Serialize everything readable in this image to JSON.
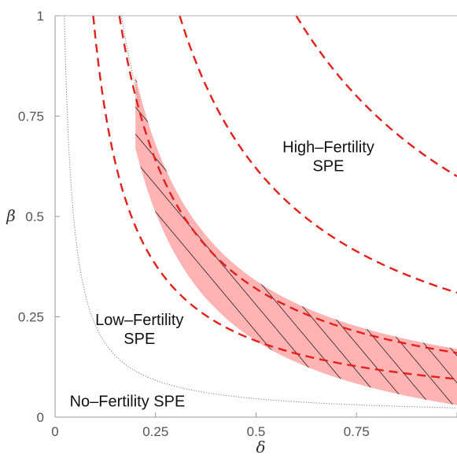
{
  "chart_data": {
    "type": "line",
    "xlabel": "δ",
    "ylabel": "β",
    "xlim": [
      0,
      1
    ],
    "ylim": [
      0,
      1
    ],
    "x_ticks": [
      "0",
      "0.25",
      "0.5",
      "0.75",
      "1"
    ],
    "y_ticks": [
      "0",
      "0.25",
      "0.5",
      "0.75",
      "1"
    ],
    "grid": false,
    "annotations": [
      {
        "text_lines": [
          "High–Fertility",
          "SPE"
        ],
        "x": 0.68,
        "y": 0.65
      },
      {
        "text_lines": [
          "Low–Fertility",
          "SPE"
        ],
        "x": 0.21,
        "y": 0.22
      },
      {
        "text_lines": [
          "No–Fertility SPE"
        ],
        "x": 0.18,
        "y": 0.04
      }
    ],
    "colors": {
      "red_dashed": "#e3201b",
      "gray_dotted": "#8c8c8c",
      "band_fill": "#ffb3b3",
      "hatch": "#2a1a1a"
    },
    "series": [
      {
        "style": "gray-dotted",
        "form": "k/x",
        "k": 0.023,
        "x_range": [
          0.023,
          1
        ]
      },
      {
        "style": "gray-dotted",
        "form": "k/x",
        "k": 0.165,
        "x_range": [
          0.165,
          0.21
        ]
      },
      {
        "style": "red-dashed",
        "form": "k/x",
        "k": 0.095,
        "x_range": [
          0.095,
          1
        ]
      },
      {
        "style": "red-dashed",
        "form": "k/x",
        "k": 0.16,
        "x_range": [
          0.16,
          1
        ]
      },
      {
        "style": "red-dashed",
        "form": "k/x",
        "k": 0.31,
        "x_range": [
          0.31,
          1
        ]
      },
      {
        "style": "red-dashed",
        "form": "k/x",
        "k": 0.6,
        "x_range": [
          0.6,
          1
        ]
      }
    ],
    "shaded_band": {
      "lower_k": 0.16,
      "upper_k": 0.17,
      "lower_min": 0.02,
      "x_range": [
        0.2,
        1
      ],
      "hatched": true
    }
  }
}
